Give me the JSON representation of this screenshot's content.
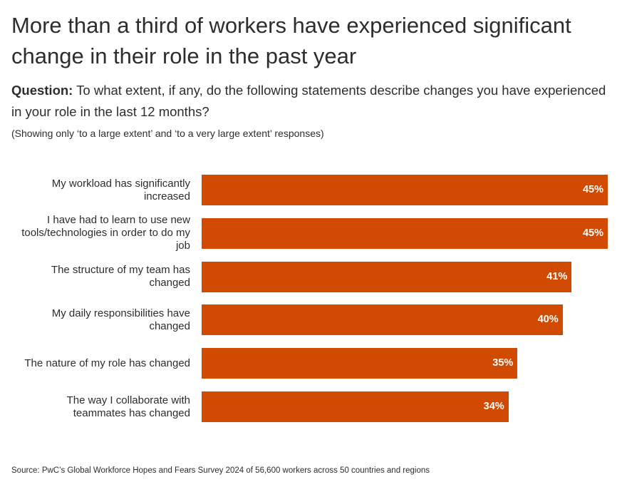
{
  "chart_data": {
    "type": "bar",
    "orientation": "horizontal",
    "title": "More than a third of workers have experienced significant change in their role in the past year",
    "question_label": "Question:",
    "question": "To what extent, if any, do the following statements describe changes you have experienced in your role in the last 12 months?",
    "note": "(Showing only ‘to a large extent’ and ‘to a very large extent’ responses)",
    "categories": [
      "My workload has significantly increased",
      "I have had to learn to use new tools/technologies in order to do my job",
      "The structure of my team has changed",
      "My daily responsibilities have changed",
      "The nature of my role has changed",
      "The way I collaborate with teammates has changed"
    ],
    "values": [
      45,
      45,
      41,
      40,
      35,
      34
    ],
    "value_labels": [
      "45%",
      "45%",
      "41%",
      "40%",
      "35%",
      "34%"
    ],
    "color": "#d04a02",
    "source": "Source: PwC’s Global Workforce Hopes and Fears Survey 2024 of 56,600 workers across 50 countries and regions"
  }
}
